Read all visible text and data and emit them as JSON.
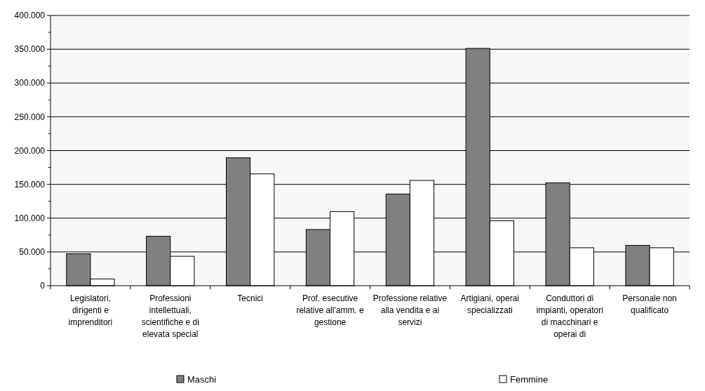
{
  "chart_data": {
    "type": "bar",
    "categories": [
      "Legislatori, dirigenti e imprenditori",
      "Professioni intellettuali, scientifiche e di elevata special",
      "Tecnici",
      "Prof. esecutive relative all'amm. e gestione",
      "Professione relative alla vendita e ai servizi",
      "Artigiani, operai specializzati",
      "Conduttori di impianti, operatori di macchinari e operai di",
      "Personale non qualificato"
    ],
    "series": [
      {
        "name": "Maschi",
        "color": "#808080",
        "values": [
          47300,
          73200,
          189300,
          83200,
          135700,
          351200,
          152300,
          59700
        ]
      },
      {
        "name": "Femmine",
        "color": "#ffffff",
        "values": [
          10000,
          43500,
          165500,
          109700,
          155800,
          96100,
          56200,
          56200
        ]
      }
    ],
    "ylim": [
      0,
      400000
    ],
    "yticks": [
      {
        "value": 0,
        "label": "0"
      },
      {
        "value": 25000,
        "label": null
      },
      {
        "value": 50000,
        "label": "50.000"
      },
      {
        "value": 75000,
        "label": null
      },
      {
        "value": 100000,
        "label": "100.000"
      },
      {
        "value": 125000,
        "label": null
      },
      {
        "value": 150000,
        "label": "150.000"
      },
      {
        "value": 175000,
        "label": null
      },
      {
        "value": 200000,
        "label": "200.000"
      },
      {
        "value": 225000,
        "label": null
      },
      {
        "value": 250000,
        "label": "250.000"
      },
      {
        "value": 275000,
        "label": null
      },
      {
        "value": 300000,
        "label": "300.000"
      },
      {
        "value": 325000,
        "label": null
      },
      {
        "value": 350000,
        "label": "350.000"
      },
      {
        "value": 375000,
        "label": null
      },
      {
        "value": 400000,
        "label": "400.000"
      }
    ],
    "grid": "y",
    "legend": "bottom"
  }
}
